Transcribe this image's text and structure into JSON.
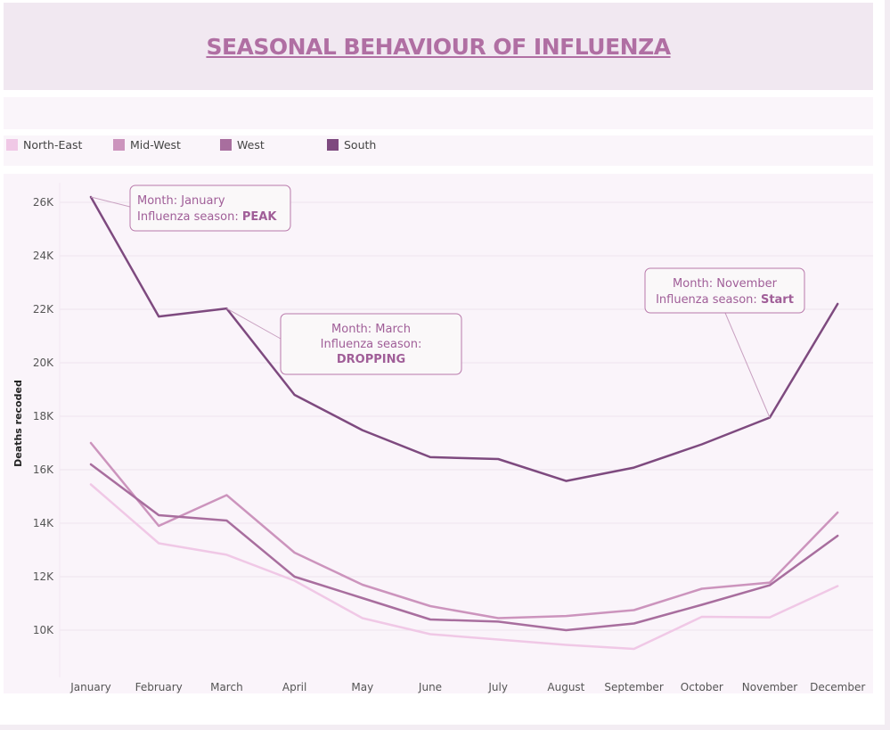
{
  "header": {
    "title": "SEASONAL BEHAVIOUR OF INFLUENZA"
  },
  "legend": [
    {
      "label": "North-East",
      "color": "#f0c8e6"
    },
    {
      "label": "Mid-West",
      "color": "#cc94bd"
    },
    {
      "label": "West",
      "color": "#a86e9e"
    },
    {
      "label": "South",
      "color": "#7e4a7f"
    }
  ],
  "annotations": [
    {
      "series": "South",
      "month": "January",
      "line1": "Month: January",
      "line2_prefix": "Influenza season: ",
      "line2_value": "PEAK"
    },
    {
      "series": "South",
      "month": "March",
      "line1": "Month: March",
      "line2_prefix": "Influenza season:",
      "line2_value": "DROPPING"
    },
    {
      "series": "South",
      "month": "November",
      "line1": "Month: November",
      "line2_prefix": "Influenza season: ",
      "line2_value": "Start"
    }
  ],
  "chart_data": {
    "type": "line",
    "title": "SEASONAL BEHAVIOUR OF INFLUENZA",
    "xlabel": "",
    "ylabel": "Deaths recoded",
    "categories": [
      "January",
      "February",
      "March",
      "April",
      "May",
      "June",
      "July",
      "August",
      "September",
      "October",
      "November",
      "December"
    ],
    "ylim": [
      9000,
      26800
    ],
    "yticks": [
      10000,
      12000,
      14000,
      16000,
      18000,
      20000,
      22000,
      24000,
      26000
    ],
    "ytick_labels": [
      "10K",
      "12K",
      "14K",
      "16K",
      "18K",
      "20K",
      "22K",
      "24K",
      "26K"
    ],
    "grid": true,
    "legend_position": "top-left",
    "series": [
      {
        "name": "North-East",
        "color": "#f0c8e6",
        "values": [
          15450,
          13250,
          12820,
          11850,
          10450,
          9850,
          9650,
          9450,
          9300,
          10500,
          10480,
          11650
        ]
      },
      {
        "name": "Mid-West",
        "color": "#cc94bd",
        "values": [
          17000,
          13900,
          15050,
          12900,
          11700,
          10900,
          10450,
          10530,
          10750,
          11550,
          11780,
          14400
        ]
      },
      {
        "name": "West",
        "color": "#a86e9e",
        "values": [
          16200,
          14300,
          14100,
          12000,
          11200,
          10400,
          10320,
          10000,
          10250,
          10950,
          11680,
          13530
        ]
      },
      {
        "name": "South",
        "color": "#7e4a7f",
        "values": [
          26200,
          21730,
          22030,
          18800,
          17480,
          16470,
          16400,
          15580,
          16080,
          16950,
          17950,
          22200
        ]
      }
    ]
  }
}
